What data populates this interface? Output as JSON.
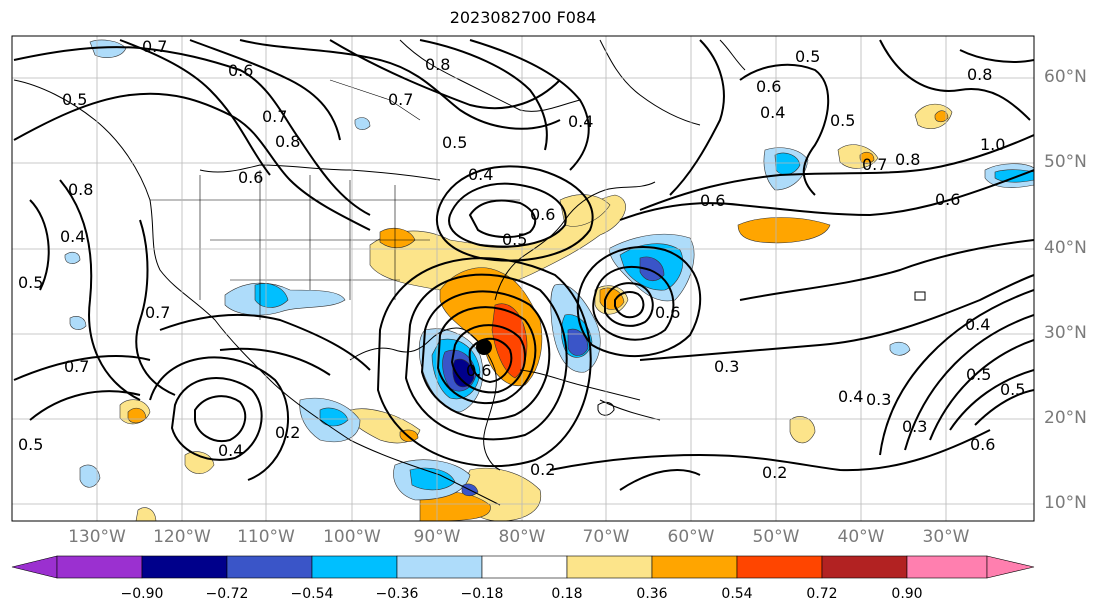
{
  "title": "2023082700 F084",
  "lon_labels": [
    "130°W",
    "120°W",
    "110°W",
    "100°W",
    "90°W",
    "80°W",
    "70°W",
    "60°W",
    "50°W",
    "40°W",
    "30°W"
  ],
  "lat_labels": [
    "60°N",
    "50°N",
    "40°N",
    "30°N",
    "20°N",
    "10°N"
  ],
  "contour_labels": [
    "0.7",
    "0.6",
    "0.5",
    "0.8",
    "0.7",
    "0.8",
    "0.7",
    "0.6",
    "0.5",
    "0.4",
    "0.5",
    "0.4",
    "0.6",
    "0.5",
    "0.8",
    "0.8",
    "1.0",
    "0.6",
    "0.6",
    "0.6",
    "0.5",
    "0.4",
    "0.7",
    "0.8",
    "0.4",
    "0.5",
    "0.7",
    "0.7",
    "0.5",
    "0.4",
    "0.3",
    "0.6",
    "0.6",
    "0.3",
    "0.4",
    "0.4",
    "0.3",
    "0.2",
    "0.5",
    "0.5",
    "0.6",
    "0.2",
    "0.2"
  ],
  "colorbar": {
    "ticks": [
      "−0.90",
      "−0.72",
      "−0.54",
      "−0.36",
      "−0.18",
      "0.18",
      "0.36",
      "0.54",
      "0.72",
      "0.90"
    ],
    "colors": [
      "#9b30d0",
      "#00008b",
      "#3a55c8",
      "#00bfff",
      "#aedcfa",
      "#ffffff",
      "#fce48a",
      "#ffa500",
      "#ff4500",
      "#b22222",
      "#ff7faf"
    ]
  },
  "storm_marker": "tropical-cyclone-center"
}
